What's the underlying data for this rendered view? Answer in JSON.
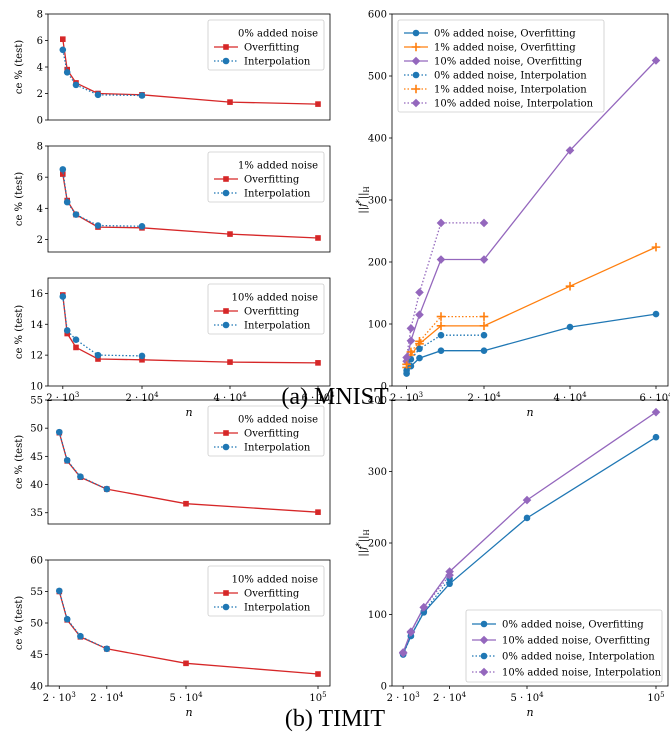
{
  "captions": {
    "a": "(a) MNIST",
    "b": "(b) TIMIT"
  },
  "chart_data": [
    {
      "type": "line",
      "panel": "mnist-err-0",
      "ylabel": "ce % (test)",
      "xlabel": "",
      "legend_title": "0% added noise",
      "xlim": [
        0,
        60000
      ],
      "ylim": [
        0,
        8
      ],
      "yticks": [
        0,
        2,
        4,
        6,
        8
      ],
      "xticks": [],
      "series": [
        {
          "name": "Overfitting",
          "color": "#d62728",
          "marker": "square",
          "dash": "solid",
          "x": [
            2000,
            3000,
            5000,
            10000,
            20000,
            40000,
            60000
          ],
          "y": [
            6.1,
            3.8,
            2.8,
            2.0,
            1.9,
            1.35,
            1.2
          ]
        },
        {
          "name": "Interpolation",
          "color": "#1f77b4",
          "marker": "circle",
          "dash": "dotted",
          "x": [
            2000,
            3000,
            5000,
            10000,
            20000
          ],
          "y": [
            5.3,
            3.6,
            2.65,
            1.9,
            1.85
          ]
        }
      ]
    },
    {
      "type": "line",
      "panel": "mnist-err-1",
      "ylabel": "ce % (test)",
      "xlabel": "",
      "legend_title": "1% added noise",
      "xlim": [
        0,
        60000
      ],
      "ylim": [
        1.2,
        8
      ],
      "yticks": [
        2,
        4,
        6,
        8
      ],
      "xticks": [],
      "series": [
        {
          "name": "Overfitting",
          "color": "#d62728",
          "marker": "square",
          "dash": "solid",
          "x": [
            2000,
            3000,
            5000,
            10000,
            20000,
            40000,
            60000
          ],
          "y": [
            6.2,
            4.5,
            3.6,
            2.8,
            2.75,
            2.35,
            2.1
          ]
        },
        {
          "name": "Interpolation",
          "color": "#1f77b4",
          "marker": "circle",
          "dash": "dotted",
          "x": [
            2000,
            3000,
            5000,
            10000,
            20000
          ],
          "y": [
            6.5,
            4.4,
            3.6,
            2.9,
            2.85
          ]
        }
      ]
    },
    {
      "type": "line",
      "panel": "mnist-err-10",
      "ylabel": "ce % (test)",
      "xlabel": "n",
      "legend_title": "10% added noise",
      "xlim": [
        0,
        60000
      ],
      "ylim": [
        10,
        17
      ],
      "yticks": [
        10,
        12,
        14,
        16
      ],
      "xticks": [
        {
          "v": 2000,
          "base": "2 · 10",
          "exp": "3"
        },
        {
          "v": 20000,
          "base": "2 · 10",
          "exp": "4"
        },
        {
          "v": 40000,
          "base": "4 · 10",
          "exp": "4"
        },
        {
          "v": 60000,
          "base": "6 · 10",
          "exp": "4"
        }
      ],
      "series": [
        {
          "name": "Overfitting",
          "color": "#d62728",
          "marker": "square",
          "dash": "solid",
          "x": [
            2000,
            3000,
            5000,
            10000,
            20000,
            40000,
            60000
          ],
          "y": [
            15.9,
            13.4,
            12.5,
            11.75,
            11.7,
            11.55,
            11.5
          ]
        },
        {
          "name": "Interpolation",
          "color": "#1f77b4",
          "marker": "circle",
          "dash": "dotted",
          "x": [
            2000,
            3000,
            5000,
            10000,
            20000
          ],
          "y": [
            15.8,
            13.6,
            13.0,
            12.0,
            11.95
          ]
        }
      ]
    },
    {
      "type": "line",
      "panel": "mnist-norm",
      "ylabel": "||f*||H",
      "xlabel": "n",
      "legend_title": "",
      "xlim": [
        0,
        60000
      ],
      "ylim": [
        0,
        600
      ],
      "yticks": [
        0,
        100,
        200,
        300,
        400,
        500,
        600
      ],
      "xticks": [
        {
          "v": 2000,
          "base": "2 · 10",
          "exp": "3"
        },
        {
          "v": 20000,
          "base": "2 · 10",
          "exp": "4"
        },
        {
          "v": 40000,
          "base": "4 · 10",
          "exp": "4"
        },
        {
          "v": 60000,
          "base": "6 · 10",
          "exp": "4"
        }
      ],
      "series": [
        {
          "name": "0% added noise, Overfitting",
          "color": "#1f77b4",
          "marker": "circle",
          "dash": "solid",
          "x": [
            2000,
            3000,
            5000,
            10000,
            20000,
            40000,
            60000
          ],
          "y": [
            20,
            32,
            45,
            57,
            57,
            95,
            116
          ]
        },
        {
          "name": "1% added noise, Overfitting",
          "color": "#ff7f0e",
          "marker": "plus",
          "dash": "solid",
          "x": [
            2000,
            3000,
            5000,
            10000,
            20000,
            40000,
            60000
          ],
          "y": [
            30,
            50,
            68,
            97,
            97,
            161,
            224
          ]
        },
        {
          "name": "10% added noise, Overfitting",
          "color": "#9467bd",
          "marker": "diamond",
          "dash": "solid",
          "x": [
            2000,
            3000,
            5000,
            10000,
            20000,
            40000,
            60000
          ],
          "y": [
            40,
            73,
            115,
            204,
            204,
            380,
            525
          ]
        },
        {
          "name": "0% added noise, Interpolation",
          "color": "#1f77b4",
          "marker": "circle",
          "dash": "dotted",
          "x": [
            2000,
            3000,
            5000,
            10000,
            20000
          ],
          "y": [
            25,
            43,
            60,
            82,
            82
          ]
        },
        {
          "name": "1% added noise, Interpolation",
          "color": "#ff7f0e",
          "marker": "plus",
          "dash": "dotted",
          "x": [
            2000,
            3000,
            5000,
            10000,
            20000
          ],
          "y": [
            35,
            55,
            72,
            112,
            112
          ]
        },
        {
          "name": "10% added noise, Interpolation",
          "color": "#9467bd",
          "marker": "diamond",
          "dash": "dotted",
          "x": [
            2000,
            3000,
            5000,
            10000,
            20000
          ],
          "y": [
            46,
            93,
            151,
            263,
            263
          ]
        }
      ]
    },
    {
      "type": "line",
      "panel": "timit-err-0",
      "ylabel": "ce % (test)",
      "xlabel": "",
      "legend_title": "0% added noise",
      "xlim": [
        0,
        100000
      ],
      "ylim": [
        33,
        55
      ],
      "yticks": [
        35,
        40,
        45,
        50,
        55
      ],
      "xticks": [],
      "series": [
        {
          "name": "Overfitting",
          "color": "#d62728",
          "marker": "square",
          "dash": "solid",
          "x": [
            2000,
            5000,
            10000,
            20000,
            50000,
            100000
          ],
          "y": [
            49.2,
            44.2,
            41.3,
            39.2,
            36.6,
            35.1
          ]
        },
        {
          "name": "Interpolation",
          "color": "#1f77b4",
          "marker": "circle",
          "dash": "dotted",
          "x": [
            2000,
            5000,
            10000,
            20000
          ],
          "y": [
            49.3,
            44.3,
            41.4,
            39.2
          ]
        }
      ]
    },
    {
      "type": "line",
      "panel": "timit-err-10",
      "ylabel": "ce % (test)",
      "xlabel": "n",
      "legend_title": "10% added noise",
      "xlim": [
        0,
        100000
      ],
      "ylim": [
        40,
        60
      ],
      "yticks": [
        40,
        45,
        50,
        55,
        60
      ],
      "xticks": [
        {
          "v": 2000,
          "base": "2 · 10",
          "exp": "3"
        },
        {
          "v": 20000,
          "base": "2 · 10",
          "exp": "4"
        },
        {
          "v": 50000,
          "base": "5 · 10",
          "exp": "4"
        },
        {
          "v": 100000,
          "base": "10",
          "exp": "5"
        }
      ],
      "series": [
        {
          "name": "Overfitting",
          "color": "#d62728",
          "marker": "square",
          "dash": "solid",
          "x": [
            2000,
            5000,
            10000,
            20000,
            50000,
            100000
          ],
          "y": [
            55.0,
            50.5,
            47.8,
            45.9,
            43.6,
            41.9
          ]
        },
        {
          "name": "Interpolation",
          "color": "#1f77b4",
          "marker": "circle",
          "dash": "dotted",
          "x": [
            2000,
            5000,
            10000,
            20000
          ],
          "y": [
            55.1,
            50.6,
            47.9,
            45.9
          ]
        }
      ]
    },
    {
      "type": "line",
      "panel": "timit-norm",
      "ylabel": "||f*||H",
      "xlabel": "n",
      "legend_title": "",
      "xlim": [
        0,
        100000
      ],
      "ylim": [
        0,
        400
      ],
      "yticks": [
        0,
        100,
        200,
        300,
        400
      ],
      "xticks": [
        {
          "v": 2000,
          "base": "2 · 10",
          "exp": "3"
        },
        {
          "v": 20000,
          "base": "2 · 10",
          "exp": "4"
        },
        {
          "v": 50000,
          "base": "5 · 10",
          "exp": "4"
        },
        {
          "v": 100000,
          "base": "10",
          "exp": "5"
        }
      ],
      "series": [
        {
          "name": "0% added noise, Overfitting",
          "color": "#1f77b4",
          "marker": "circle",
          "dash": "solid",
          "x": [
            2000,
            5000,
            10000,
            20000,
            50000,
            100000
          ],
          "y": [
            45,
            70,
            103,
            143,
            235,
            348
          ]
        },
        {
          "name": "10% added noise, Overfitting",
          "color": "#9467bd",
          "marker": "diamond",
          "dash": "solid",
          "x": [
            2000,
            5000,
            10000,
            20000,
            50000,
            100000
          ],
          "y": [
            47,
            76,
            110,
            160,
            260,
            383
          ]
        },
        {
          "name": "0% added noise, Interpolation",
          "color": "#1f77b4",
          "marker": "circle",
          "dash": "dotted",
          "x": [
            2000,
            5000,
            10000,
            20000
          ],
          "y": [
            44,
            70,
            104,
            150
          ]
        },
        {
          "name": "10% added noise, Interpolation",
          "color": "#9467bd",
          "marker": "diamond",
          "dash": "dotted",
          "x": [
            2000,
            5000,
            10000,
            20000
          ],
          "y": [
            46,
            75,
            110,
            155
          ]
        }
      ]
    }
  ]
}
